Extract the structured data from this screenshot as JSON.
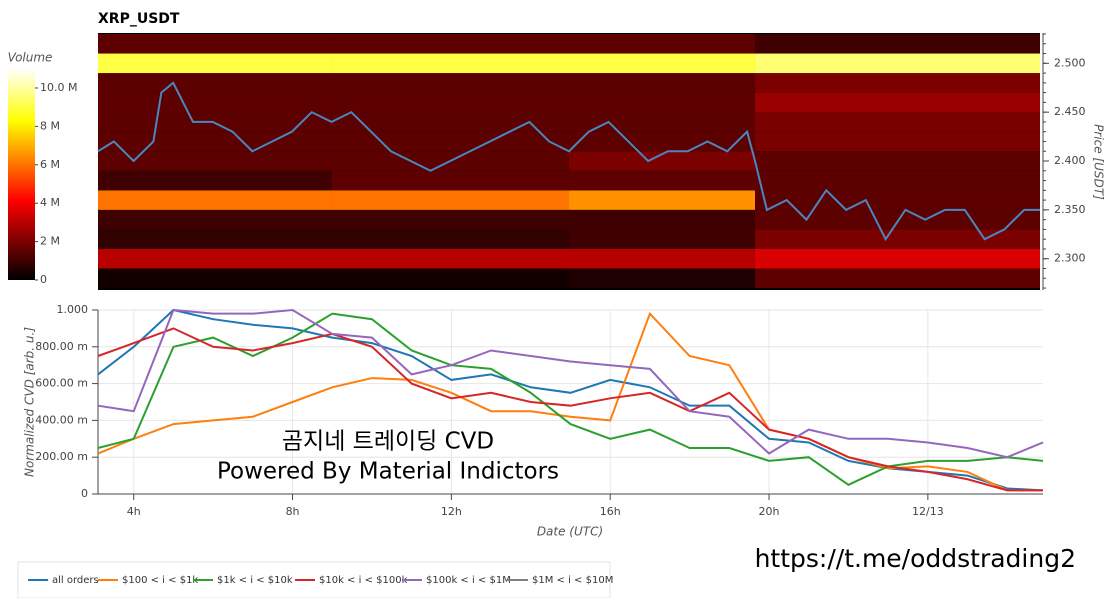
{
  "chart_data": [
    {
      "type": "heatmap",
      "title": "XRP_USDT",
      "ylabel": "Price [USDT]",
      "y_axis_side": "right",
      "xlim": [
        3.1,
        26.9
      ],
      "ylim": [
        2.268,
        2.531
      ],
      "yticks": [
        {
          "value": 2.3,
          "label": "2.300"
        },
        {
          "value": 2.35,
          "label": "2.350"
        },
        {
          "value": 2.4,
          "label": "2.400"
        },
        {
          "value": 2.45,
          "label": "2.450"
        },
        {
          "value": 2.5,
          "label": "2.500"
        }
      ],
      "x_edges": [
        3.1,
        9,
        15,
        19.7,
        26.9
      ],
      "y_edges": [
        2.27,
        2.29,
        2.31,
        2.33,
        2.35,
        2.37,
        2.39,
        2.41,
        2.43,
        2.45,
        2.47,
        2.49,
        2.51,
        2.53
      ],
      "z": [
        [
          300000,
          300000,
          500000,
          1500000
        ],
        [
          3000000,
          3000000,
          3000000,
          3500000
        ],
        [
          800000,
          800000,
          1000000,
          2000000
        ],
        [
          1000000,
          1000000,
          1000000,
          1500000
        ],
        [
          6000000,
          6000000,
          6500000,
          1500000
        ],
        [
          1000000,
          1500000,
          1500000,
          1500000
        ],
        [
          1500000,
          1500000,
          2000000,
          1500000
        ],
        [
          1500000,
          1500000,
          1500000,
          2000000
        ],
        [
          1500000,
          1500000,
          1500000,
          2000000
        ],
        [
          1500000,
          1500000,
          1500000,
          2500000
        ],
        [
          1500000,
          1500000,
          1500000,
          2000000
        ],
        [
          9000000,
          9000000,
          9000000,
          9500000
        ],
        [
          1500000,
          1500000,
          1500000,
          1000000
        ]
      ],
      "zlabel": "Volume",
      "zlim": [
        0,
        11040000
      ],
      "colormap": "hot",
      "zticks": [
        0,
        {
          "value": 2000000,
          "label": "2 M"
        },
        {
          "value": 4000000,
          "label": "4 M"
        },
        {
          "value": 6000000,
          "label": "6 M"
        },
        {
          "value": 8000000,
          "label": "8 M"
        },
        {
          "value": 10000000,
          "label": "10.0 M"
        }
      ],
      "line": {
        "color": "#4a86c0",
        "x": [
          3.1,
          3.5,
          4,
          4.5,
          4.7,
          5,
          5.5,
          6,
          6.5,
          7,
          7.5,
          8,
          8.5,
          9,
          9.5,
          10,
          10.5,
          11,
          11.5,
          12,
          12.5,
          13,
          13.5,
          14,
          14.5,
          15,
          15.5,
          16,
          16.5,
          17,
          17.5,
          18,
          18.5,
          19,
          19.5,
          19.7,
          20,
          20.5,
          21,
          21.5,
          22,
          22.5,
          23,
          23.5,
          24,
          24.5,
          25,
          25.5,
          26,
          26.5,
          26.9
        ],
        "values": [
          2.41,
          2.42,
          2.4,
          2.42,
          2.47,
          2.48,
          2.44,
          2.44,
          2.43,
          2.41,
          2.42,
          2.43,
          2.45,
          2.44,
          2.45,
          2.43,
          2.41,
          2.4,
          2.39,
          2.4,
          2.41,
          2.42,
          2.43,
          2.44,
          2.42,
          2.41,
          2.43,
          2.44,
          2.42,
          2.4,
          2.41,
          2.41,
          2.42,
          2.41,
          2.43,
          2.4,
          2.35,
          2.36,
          2.34,
          2.37,
          2.35,
          2.36,
          2.32,
          2.35,
          2.34,
          2.35,
          2.35,
          2.32,
          2.33,
          2.35,
          2.35
        ]
      }
    },
    {
      "type": "line",
      "xlabel": "Date (UTC)",
      "ylabel": "Normalized CVD [arb. u.]",
      "grid": true,
      "xlim": [
        3.1,
        26.9
      ],
      "ylim": [
        0,
        1
      ],
      "xticks": [
        {
          "value": 4,
          "label": "4h"
        },
        {
          "value": 8,
          "label": "8h"
        },
        {
          "value": 12,
          "label": "12h"
        },
        {
          "value": 16,
          "label": "16h"
        },
        {
          "value": 20,
          "label": "20h"
        },
        {
          "value": 24,
          "label": "12/13"
        }
      ],
      "yticks": [
        0,
        {
          "value": 0.2,
          "label": "200.00 m"
        },
        {
          "value": 0.4,
          "label": "400.00 m"
        },
        {
          "value": 0.6,
          "label": "600.00 m"
        },
        {
          "value": 0.8,
          "label": "800.00 m"
        },
        {
          "value": 1,
          "label": "1.000"
        }
      ],
      "x": [
        3.1,
        4,
        5,
        6,
        7,
        8,
        9,
        10,
        11,
        12,
        13,
        14,
        15,
        16,
        17,
        18,
        19,
        20,
        21,
        22,
        23,
        24,
        25,
        26,
        26.9
      ],
      "series": [
        {
          "name": "all orders",
          "color": "#1f77b4",
          "values": [
            0.65,
            0.8,
            1.0,
            0.95,
            0.92,
            0.9,
            0.85,
            0.82,
            0.75,
            0.62,
            0.65,
            0.58,
            0.55,
            0.62,
            0.58,
            0.48,
            0.48,
            0.3,
            0.28,
            0.18,
            0.14,
            0.12,
            0.1,
            0.03,
            0.02
          ]
        },
        {
          "name": "$100 < i < $1k",
          "color": "#ff7f0e",
          "values": [
            0.22,
            0.3,
            0.38,
            0.4,
            0.42,
            0.5,
            0.58,
            0.63,
            0.62,
            0.55,
            0.45,
            0.45,
            0.42,
            0.4,
            0.98,
            0.75,
            0.7,
            0.35,
            0.3,
            0.2,
            0.14,
            0.15,
            0.12,
            0.02,
            0.02
          ]
        },
        {
          "name": "$1k < i < $10k",
          "color": "#2ca02c",
          "values": [
            0.25,
            0.3,
            0.8,
            0.85,
            0.75,
            0.85,
            0.98,
            0.95,
            0.78,
            0.7,
            0.68,
            0.55,
            0.38,
            0.3,
            0.35,
            0.25,
            0.25,
            0.18,
            0.2,
            0.05,
            0.15,
            0.18,
            0.18,
            0.2,
            0.18
          ]
        },
        {
          "name": "$10k < i < $100k",
          "color": "#d62728",
          "values": [
            0.75,
            0.82,
            0.9,
            0.8,
            0.78,
            0.82,
            0.87,
            0.8,
            0.6,
            0.52,
            0.55,
            0.5,
            0.48,
            0.52,
            0.55,
            0.45,
            0.55,
            0.35,
            0.3,
            0.2,
            0.15,
            0.12,
            0.08,
            0.02,
            0.02
          ]
        },
        {
          "name": "$100k < i < $1M",
          "color": "#9467bd",
          "values": [
            0.48,
            0.45,
            1.0,
            0.98,
            0.98,
            1.0,
            0.87,
            0.85,
            0.65,
            0.7,
            0.78,
            0.75,
            0.72,
            0.7,
            0.68,
            0.45,
            0.42,
            0.22,
            0.35,
            0.3,
            0.3,
            0.28,
            0.25,
            0.2,
            0.28
          ]
        },
        {
          "name": "$1M < i < $10M",
          "color": "#7f7f7f",
          "values": [
            null,
            null,
            null,
            null,
            null,
            null,
            null,
            null,
            null,
            null,
            null,
            null,
            null,
            null,
            null,
            null,
            null,
            null,
            null,
            null,
            null,
            null,
            null,
            null,
            null
          ]
        }
      ],
      "annotations": [
        "곰지네 트레이딩 CVD",
        "Powered By Material Indictors"
      ]
    }
  ],
  "footer_link": "https://t.me/oddstrading2"
}
